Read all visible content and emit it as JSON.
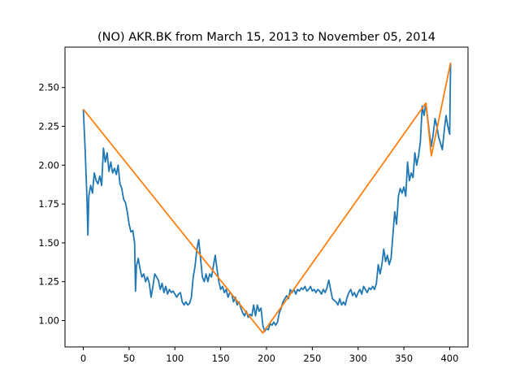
{
  "chart_data": {
    "type": "line",
    "title": "(NO) AKR.BK from March 15, 2013 to November 05, 2014",
    "xlabel": "",
    "ylabel": "",
    "xlim": [
      -20,
      420
    ],
    "ylim": [
      0.83,
      2.76
    ],
    "xticks": [
      0,
      50,
      100,
      150,
      200,
      250,
      300,
      350,
      400
    ],
    "xtick_labels": [
      "0",
      "50",
      "100",
      "150",
      "200",
      "250",
      "300",
      "350",
      "400"
    ],
    "yticks": [
      1.0,
      1.25,
      1.5,
      1.75,
      2.0,
      2.25,
      2.5
    ],
    "ytick_labels": [
      "1.00",
      "1.25",
      "1.50",
      "1.75",
      "2.00",
      "2.25",
      "2.50"
    ],
    "grid": false,
    "legend": "none",
    "series": [
      {
        "color": "#1f77b4",
        "points": [
          [
            0,
            2.36
          ],
          [
            2,
            2.1
          ],
          [
            4,
            1.78
          ],
          [
            5,
            1.55
          ],
          [
            6,
            1.8
          ],
          [
            8,
            1.87
          ],
          [
            10,
            1.82
          ],
          [
            12,
            1.95
          ],
          [
            14,
            1.9
          ],
          [
            16,
            1.88
          ],
          [
            18,
            1.93
          ],
          [
            20,
            1.87
          ],
          [
            22,
            2.11
          ],
          [
            24,
            2.02
          ],
          [
            26,
            2.08
          ],
          [
            28,
            1.96
          ],
          [
            30,
            2.02
          ],
          [
            32,
            1.95
          ],
          [
            34,
            1.98
          ],
          [
            36,
            1.94
          ],
          [
            38,
            2.0
          ],
          [
            40,
            1.88
          ],
          [
            42,
            1.85
          ],
          [
            44,
            1.78
          ],
          [
            46,
            1.76
          ],
          [
            48,
            1.7
          ],
          [
            50,
            1.62
          ],
          [
            52,
            1.57
          ],
          [
            54,
            1.58
          ],
          [
            56,
            1.5
          ],
          [
            57,
            1.19
          ],
          [
            58,
            1.35
          ],
          [
            60,
            1.4
          ],
          [
            62,
            1.33
          ],
          [
            64,
            1.28
          ],
          [
            66,
            1.3
          ],
          [
            68,
            1.25
          ],
          [
            70,
            1.28
          ],
          [
            72,
            1.24
          ],
          [
            74,
            1.15
          ],
          [
            76,
            1.22
          ],
          [
            78,
            1.3
          ],
          [
            80,
            1.28
          ],
          [
            82,
            1.26
          ],
          [
            84,
            1.2
          ],
          [
            86,
            1.24
          ],
          [
            88,
            1.18
          ],
          [
            90,
            1.22
          ],
          [
            92,
            1.17
          ],
          [
            94,
            1.2
          ],
          [
            96,
            1.18
          ],
          [
            98,
            1.19
          ],
          [
            100,
            1.17
          ],
          [
            102,
            1.15
          ],
          [
            104,
            1.17
          ],
          [
            106,
            1.18
          ],
          [
            108,
            1.12
          ],
          [
            110,
            1.1
          ],
          [
            112,
            1.12
          ],
          [
            114,
            1.1
          ],
          [
            116,
            1.11
          ],
          [
            118,
            1.15
          ],
          [
            120,
            1.28
          ],
          [
            122,
            1.35
          ],
          [
            124,
            1.46
          ],
          [
            126,
            1.52
          ],
          [
            128,
            1.4
          ],
          [
            130,
            1.28
          ],
          [
            132,
            1.25
          ],
          [
            134,
            1.3
          ],
          [
            136,
            1.25
          ],
          [
            138,
            1.3
          ],
          [
            140,
            1.28
          ],
          [
            142,
            1.35
          ],
          [
            144,
            1.42
          ],
          [
            146,
            1.33
          ],
          [
            148,
            1.25
          ],
          [
            150,
            1.2
          ],
          [
            152,
            1.22
          ],
          [
            154,
            1.18
          ],
          [
            156,
            1.2
          ],
          [
            158,
            1.15
          ],
          [
            160,
            1.18
          ],
          [
            162,
            1.17
          ],
          [
            164,
            1.12
          ],
          [
            166,
            1.15
          ],
          [
            168,
            1.1
          ],
          [
            170,
            1.12
          ],
          [
            172,
            1.08
          ],
          [
            174,
            1.05
          ],
          [
            176,
            1.03
          ],
          [
            178,
            1.06
          ],
          [
            180,
            1.02
          ],
          [
            182,
            1.04
          ],
          [
            184,
            1.03
          ],
          [
            186,
            1.1
          ],
          [
            188,
            1.03
          ],
          [
            190,
            1.1
          ],
          [
            192,
            1.06
          ],
          [
            194,
            1.08
          ],
          [
            196,
            0.97
          ],
          [
            198,
            0.93
          ],
          [
            200,
            0.95
          ],
          [
            202,
            0.94
          ],
          [
            204,
            0.98
          ],
          [
            206,
            0.97
          ],
          [
            208,
            0.99
          ],
          [
            210,
            0.97
          ],
          [
            212,
            0.99
          ],
          [
            214,
            1.05
          ],
          [
            216,
            1.08
          ],
          [
            218,
            1.12
          ],
          [
            220,
            1.14
          ],
          [
            222,
            1.16
          ],
          [
            224,
            1.14
          ],
          [
            226,
            1.2
          ],
          [
            228,
            1.18
          ],
          [
            230,
            1.2
          ],
          [
            232,
            1.17
          ],
          [
            234,
            1.2
          ],
          [
            236,
            1.19
          ],
          [
            238,
            1.21
          ],
          [
            240,
            1.2
          ],
          [
            242,
            1.22
          ],
          [
            244,
            1.19
          ],
          [
            246,
            1.2
          ],
          [
            248,
            1.22
          ],
          [
            250,
            1.19
          ],
          [
            252,
            1.2
          ],
          [
            254,
            1.18
          ],
          [
            256,
            1.2
          ],
          [
            258,
            1.19
          ],
          [
            260,
            1.17
          ],
          [
            262,
            1.2
          ],
          [
            264,
            1.18
          ],
          [
            266,
            1.21
          ],
          [
            268,
            1.26
          ],
          [
            270,
            1.2
          ],
          [
            272,
            1.14
          ],
          [
            274,
            1.13
          ],
          [
            276,
            1.12
          ],
          [
            278,
            1.1
          ],
          [
            280,
            1.14
          ],
          [
            282,
            1.1
          ],
          [
            284,
            1.12
          ],
          [
            286,
            1.1
          ],
          [
            288,
            1.15
          ],
          [
            290,
            1.18
          ],
          [
            292,
            1.2
          ],
          [
            294,
            1.16
          ],
          [
            296,
            1.18
          ],
          [
            298,
            1.15
          ],
          [
            300,
            1.18
          ],
          [
            302,
            1.2
          ],
          [
            304,
            1.17
          ],
          [
            306,
            1.22
          ],
          [
            308,
            1.2
          ],
          [
            310,
            1.18
          ],
          [
            312,
            1.21
          ],
          [
            314,
            1.2
          ],
          [
            316,
            1.22
          ],
          [
            318,
            1.2
          ],
          [
            320,
            1.24
          ],
          [
            322,
            1.36
          ],
          [
            324,
            1.3
          ],
          [
            326,
            1.36
          ],
          [
            328,
            1.46
          ],
          [
            330,
            1.38
          ],
          [
            332,
            1.42
          ],
          [
            334,
            1.36
          ],
          [
            336,
            1.4
          ],
          [
            338,
            1.55
          ],
          [
            340,
            1.7
          ],
          [
            342,
            1.62
          ],
          [
            344,
            1.8
          ],
          [
            346,
            1.85
          ],
          [
            348,
            1.82
          ],
          [
            350,
            1.86
          ],
          [
            352,
            1.8
          ],
          [
            354,
            2.02
          ],
          [
            356,
            1.9
          ],
          [
            358,
            1.95
          ],
          [
            360,
            1.92
          ],
          [
            362,
            2.08
          ],
          [
            364,
            2.0
          ],
          [
            366,
            2.06
          ],
          [
            368,
            2.15
          ],
          [
            370,
            2.38
          ],
          [
            372,
            2.32
          ],
          [
            374,
            2.4
          ],
          [
            376,
            2.3
          ],
          [
            378,
            2.2
          ],
          [
            380,
            2.12
          ],
          [
            382,
            2.2
          ],
          [
            384,
            2.3
          ],
          [
            386,
            2.25
          ],
          [
            388,
            2.18
          ],
          [
            390,
            2.14
          ],
          [
            392,
            2.1
          ],
          [
            394,
            2.22
          ],
          [
            396,
            2.32
          ],
          [
            398,
            2.25
          ],
          [
            400,
            2.2
          ],
          [
            401,
            2.66
          ]
        ]
      },
      {
        "color": "#ff7f0e",
        "points": [
          [
            0,
            2.36
          ],
          [
            196,
            0.92
          ],
          [
            374,
            2.4
          ],
          [
            380,
            2.06
          ],
          [
            401,
            2.66
          ]
        ]
      }
    ]
  }
}
